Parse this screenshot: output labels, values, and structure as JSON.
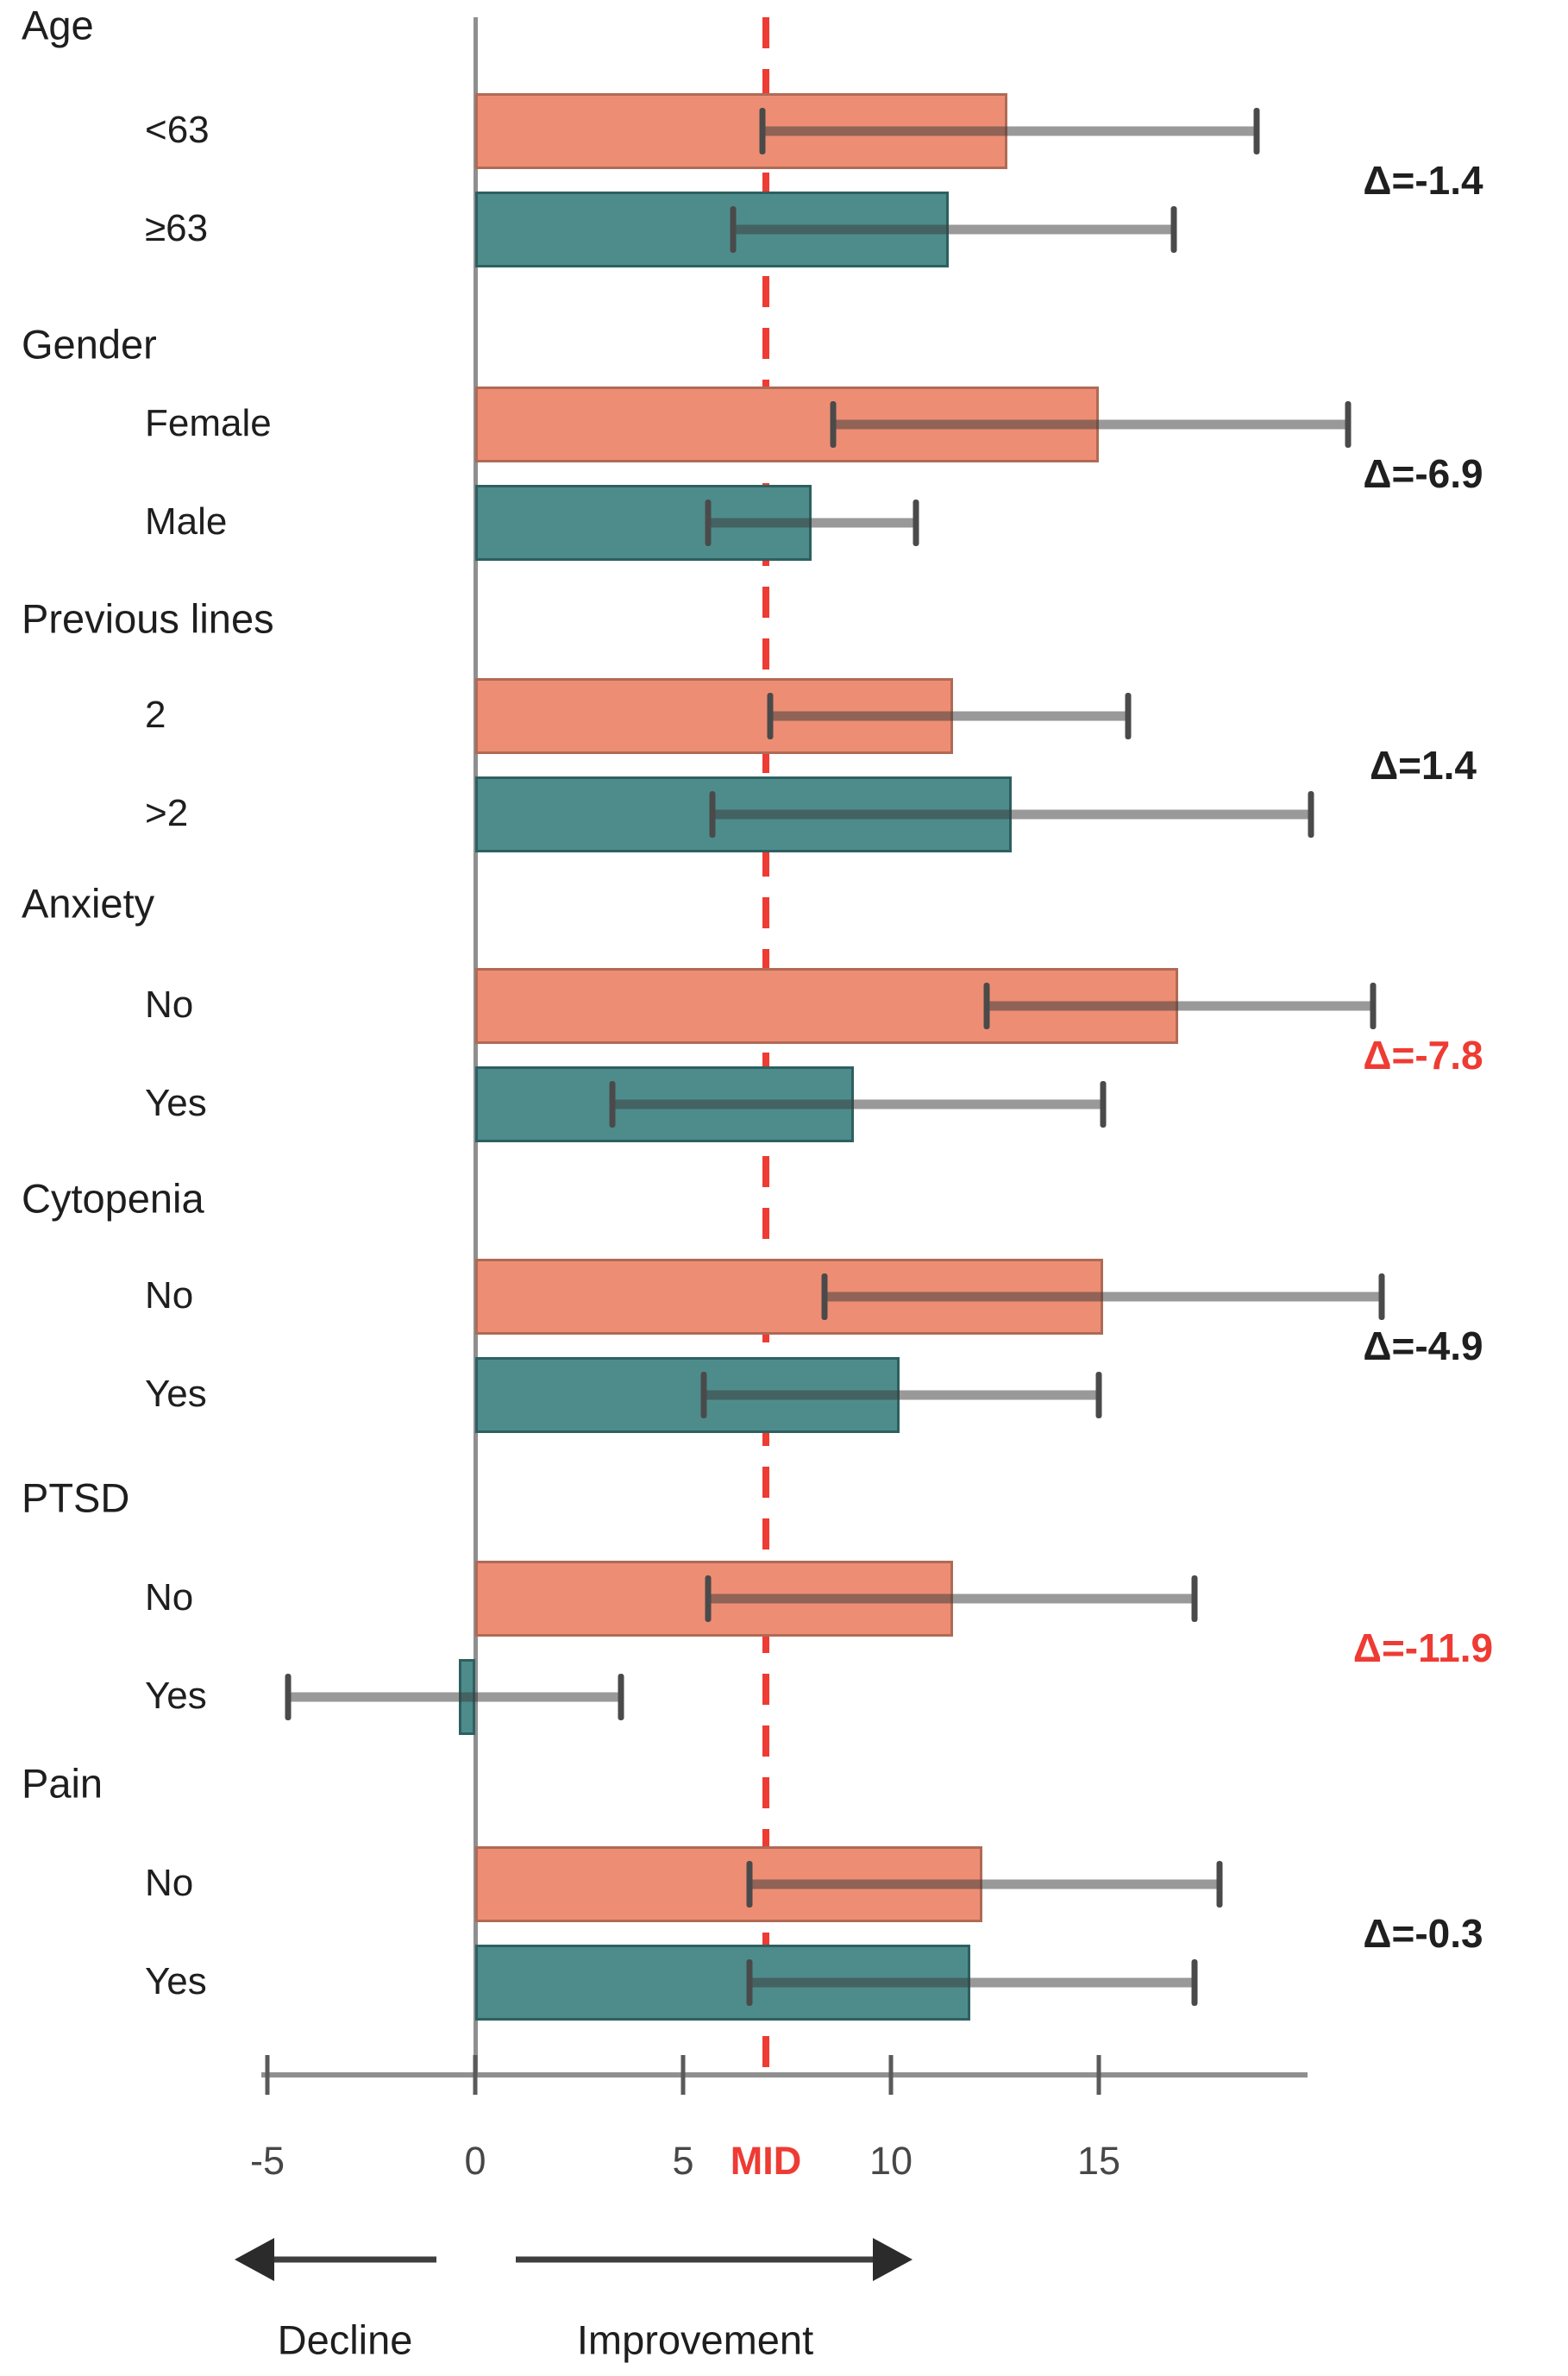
{
  "chart_data": {
    "type": "bar",
    "orientation": "horizontal",
    "title": "",
    "x_axis": {
      "range": [
        -5,
        20
      ],
      "ticks": [
        -5,
        0,
        5,
        10,
        15
      ],
      "tick_labels": [
        "-5",
        "0",
        "5",
        "10",
        "15"
      ]
    },
    "mid_line": {
      "label": "MID",
      "value": 7
    },
    "colors": {
      "series_top": "#ED8E74",
      "series_top_border": "#B06A55",
      "series_bottom": "#4E8C8C",
      "series_bottom_border": "#2D6060",
      "reference_red": "#EE3B33",
      "delta_default": "#1F1F1F"
    },
    "groups": [
      {
        "label": "Age",
        "rows": [
          {
            "label": "<63",
            "series": "top",
            "value": 12.8,
            "ci": [
              6.9,
              18.8
            ]
          },
          {
            "label": "≥63",
            "series": "bottom",
            "value": 11.4,
            "ci": [
              6.2,
              16.8
            ]
          }
        ],
        "delta": "Δ=-1.4",
        "delta_color": "#1F1F1F"
      },
      {
        "label": "Gender",
        "rows": [
          {
            "label": "Female",
            "series": "top",
            "value": 15.0,
            "ci": [
              8.6,
              21.0
            ]
          },
          {
            "label": "Male",
            "series": "bottom",
            "value": 8.1,
            "ci": [
              5.6,
              10.6
            ]
          }
        ],
        "delta": "Δ=-6.9",
        "delta_color": "#1F1F1F"
      },
      {
        "label": "Previous lines",
        "rows": [
          {
            "label": "2",
            "series": "top",
            "value": 11.5,
            "ci": [
              7.1,
              15.7
            ]
          },
          {
            "label": ">2",
            "series": "bottom",
            "value": 12.9,
            "ci": [
              5.7,
              20.1
            ]
          }
        ],
        "delta": "Δ=1.4",
        "delta_color": "#1F1F1F"
      },
      {
        "label": "Anxiety",
        "rows": [
          {
            "label": "No",
            "series": "top",
            "value": 16.9,
            "ci": [
              12.3,
              21.6
            ]
          },
          {
            "label": "Yes",
            "series": "bottom",
            "value": 9.1,
            "ci": [
              3.3,
              15.1
            ]
          }
        ],
        "delta": "Δ=-7.8",
        "delta_color": "#EE3B33"
      },
      {
        "label": "Cytopenia",
        "rows": [
          {
            "label": "No",
            "series": "top",
            "value": 15.1,
            "ci": [
              8.4,
              21.8
            ]
          },
          {
            "label": "Yes",
            "series": "bottom",
            "value": 10.2,
            "ci": [
              5.5,
              15.0
            ]
          }
        ],
        "delta": "Δ=-4.9",
        "delta_color": "#1F1F1F"
      },
      {
        "label": "PTSD",
        "rows": [
          {
            "label": "No",
            "series": "top",
            "value": 11.5,
            "ci": [
              5.6,
              17.3
            ]
          },
          {
            "label": "Yes",
            "series": "bottom",
            "value": -0.4,
            "ci": [
              -4.5,
              3.5
            ]
          }
        ],
        "delta": "Δ=-11.9",
        "delta_color": "#EE3B33"
      },
      {
        "label": "Pain",
        "rows": [
          {
            "label": "No",
            "series": "top",
            "value": 12.2,
            "ci": [
              6.6,
              17.9
            ]
          },
          {
            "label": "Yes",
            "series": "bottom",
            "value": 11.9,
            "ci": [
              6.6,
              17.3
            ]
          }
        ],
        "delta": "Δ=-0.3",
        "delta_color": "#1F1F1F"
      }
    ],
    "annotations": {
      "decline": "Decline",
      "improvement": "Improvement"
    },
    "legend_position": "none",
    "grid": false
  }
}
